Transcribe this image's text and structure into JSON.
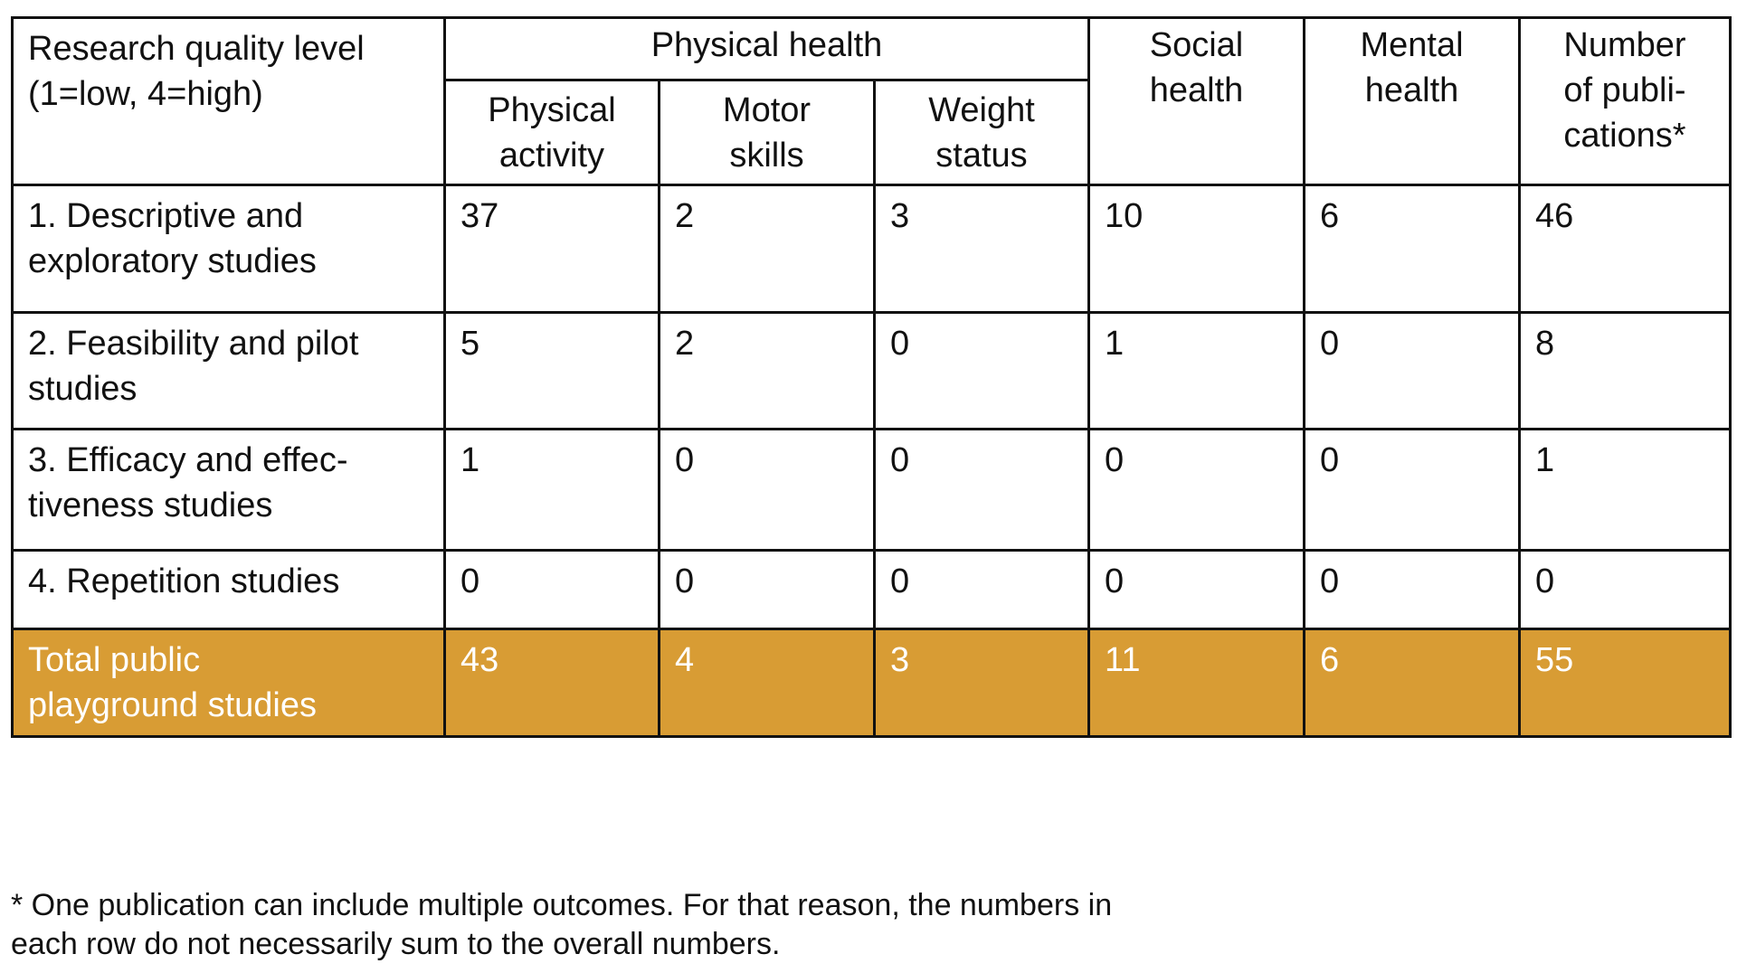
{
  "table": {
    "row_header": "Research quality level\n(1=low, 4=high)",
    "group": "Physical health",
    "group_columns": [
      "Physical\nactivity",
      "Motor\nskills",
      "Weight\nstatus"
    ],
    "other_columns": [
      "Social\nhealth",
      "Mental\nhealth",
      "Number\nof publi-\ncations*"
    ],
    "rows": [
      {
        "label": "1. Descriptive and\nexploratory studies",
        "values": [
          37,
          2,
          3,
          10,
          6,
          46
        ]
      },
      {
        "label": "2. Feasibility and pilot\nstudies",
        "values": [
          5,
          2,
          0,
          1,
          0,
          8
        ]
      },
      {
        "label": "3. Efficacy and effec-\ntiveness studies",
        "values": [
          1,
          0,
          0,
          0,
          0,
          1
        ]
      },
      {
        "label": "4. Repetition studies",
        "values": [
          0,
          0,
          0,
          0,
          0,
          0
        ]
      }
    ],
    "total": {
      "label": "Total public\nplayground studies",
      "values": [
        43,
        4,
        3,
        11,
        6,
        55
      ]
    }
  },
  "footnote": "* One publication can include multiple outcomes. For that reason, the numbers in\neach row do not necessarily sum to the overall numbers."
}
